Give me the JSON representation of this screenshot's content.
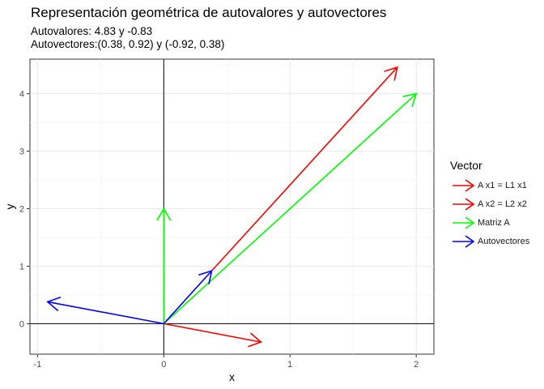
{
  "chart_data": {
    "type": "vector-plot",
    "title": "Representación geométrica de autovalores y autovectores",
    "subtitle_lines": [
      "Autovalores: 4.83 y -0.83",
      "Autovectores:(0.38, 0.92) y (-0.92, 0.38)"
    ],
    "xlabel": "x",
    "ylabel": "y",
    "xlim": [
      -1.06,
      2.14
    ],
    "ylim": [
      -0.53,
      4.6
    ],
    "x_ticks": [
      -1,
      0,
      1,
      2
    ],
    "y_ticks": [
      0,
      1,
      2,
      3,
      4
    ],
    "x_tick_labels": [
      "-1",
      "0",
      "1",
      "2"
    ],
    "y_tick_labels": [
      "0",
      "1",
      "2",
      "3",
      "4"
    ],
    "grid": true,
    "reference_lines": {
      "x": 0,
      "y": 0
    },
    "legend_title": "Vector",
    "legend_position": "right",
    "series": [
      {
        "name": "A x1 = L1 x1",
        "color": "#ff0000",
        "vectors": [
          [
            0.38,
            0.92,
            1.85,
            4.46
          ],
          [
            0,
            0,
            0.77,
            -0.32
          ]
        ]
      },
      {
        "name": "A x2 = L2 x2",
        "color": "#ff0000",
        "vectors": []
      },
      {
        "name": "Matriz A",
        "color": "#00ff00",
        "vectors": [
          [
            0,
            0,
            2,
            4
          ],
          [
            0,
            0,
            0,
            2
          ]
        ]
      },
      {
        "name": "Autovectores",
        "color": "#0000ff",
        "vectors": [
          [
            0,
            0,
            0.38,
            0.92
          ],
          [
            0,
            0,
            -0.92,
            0.38
          ]
        ]
      }
    ]
  }
}
